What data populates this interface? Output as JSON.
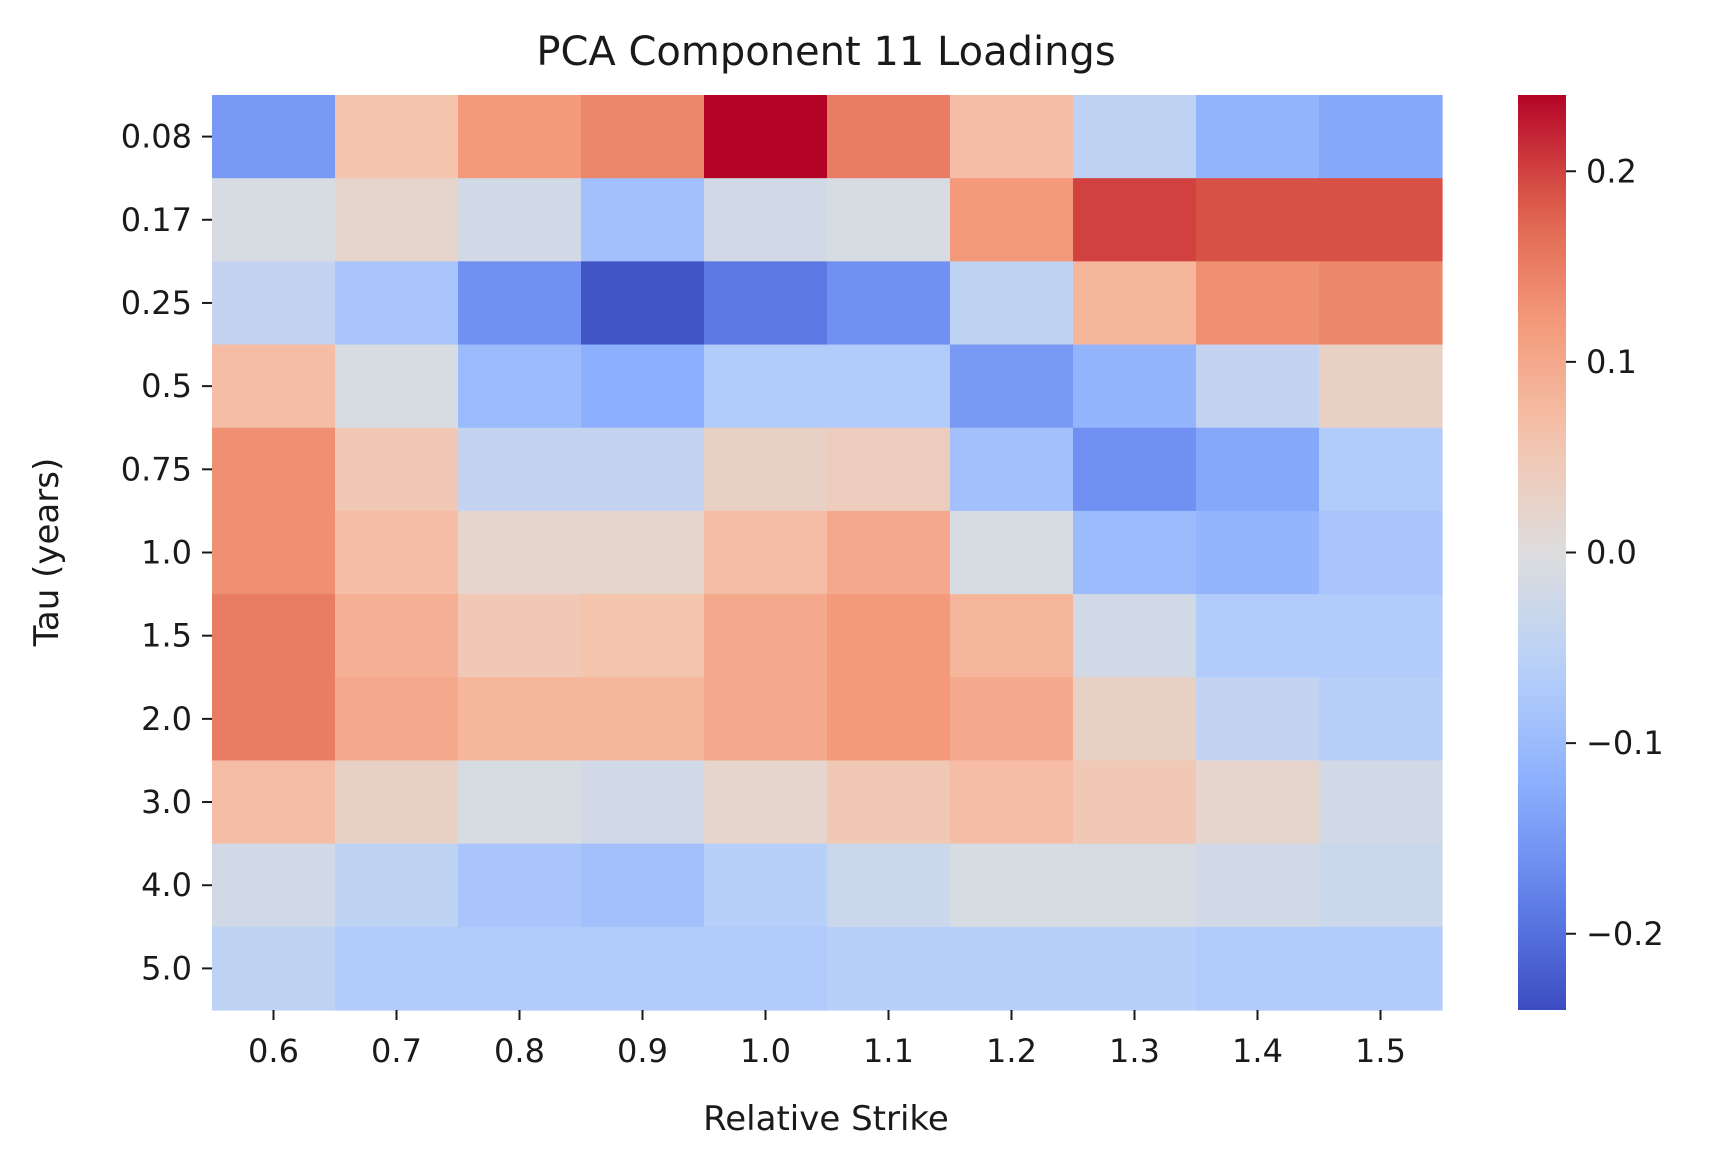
{
  "chart_data": {
    "type": "heatmap",
    "title": "PCA Component 11 Loadings",
    "xlabel": "Relative Strike",
    "ylabel": "Tau (years)",
    "x_categories": [
      "0.6",
      "0.7",
      "0.8",
      "0.9",
      "1.0",
      "1.1",
      "1.2",
      "1.3",
      "1.4",
      "1.5"
    ],
    "y_categories": [
      "0.08",
      "0.17",
      "0.25",
      "0.5",
      "0.75",
      "1.0",
      "1.5",
      "2.0",
      "3.0",
      "4.0",
      "5.0"
    ],
    "values": [
      [
        -0.15,
        0.06,
        0.12,
        0.14,
        0.24,
        0.15,
        0.07,
        -0.05,
        -0.11,
        -0.13
      ],
      [
        -0.01,
        0.02,
        -0.02,
        -0.09,
        -0.02,
        -0.01,
        0.12,
        0.2,
        0.19,
        0.19
      ],
      [
        -0.04,
        -0.08,
        -0.16,
        -0.23,
        -0.19,
        -0.16,
        -0.05,
        0.08,
        0.13,
        0.14
      ],
      [
        0.07,
        -0.01,
        -0.1,
        -0.12,
        -0.07,
        -0.07,
        -0.15,
        -0.11,
        -0.04,
        0.03
      ],
      [
        0.13,
        0.05,
        -0.04,
        -0.04,
        0.03,
        0.04,
        -0.09,
        -0.16,
        -0.13,
        -0.07
      ],
      [
        0.13,
        0.07,
        0.02,
        0.02,
        0.07,
        0.1,
        -0.01,
        -0.1,
        -0.11,
        -0.08
      ],
      [
        0.15,
        0.09,
        0.05,
        0.06,
        0.1,
        0.12,
        0.08,
        -0.02,
        -0.07,
        -0.07
      ],
      [
        0.15,
        0.1,
        0.08,
        0.08,
        0.1,
        0.12,
        0.1,
        0.03,
        -0.04,
        -0.06
      ],
      [
        0.07,
        0.03,
        -0.01,
        -0.02,
        0.02,
        0.05,
        0.07,
        0.05,
        0.02,
        -0.02
      ],
      [
        -0.02,
        -0.05,
        -0.08,
        -0.09,
        -0.06,
        -0.03,
        -0.01,
        -0.01,
        -0.02,
        -0.03
      ],
      [
        -0.05,
        -0.07,
        -0.07,
        -0.07,
        -0.07,
        -0.06,
        -0.06,
        -0.06,
        -0.07,
        -0.07
      ]
    ],
    "color_range": [
      -0.24,
      0.24
    ],
    "colormap": "coolwarm",
    "colorbar_ticks": [
      -0.2,
      -0.1,
      0.0,
      0.1,
      0.2
    ],
    "colorbar_tick_labels": [
      "−0.2",
      "−0.1",
      "0.0",
      "0.1",
      "0.2"
    ],
    "grid": false,
    "legend": "colorbar-right"
  }
}
